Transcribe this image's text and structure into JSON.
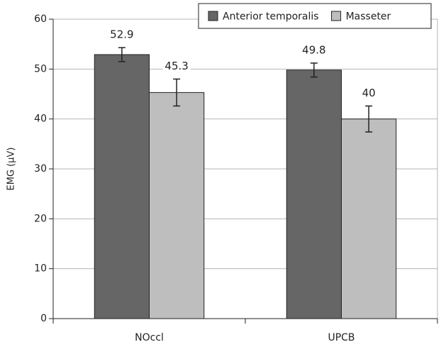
{
  "chart_data": {
    "type": "bar",
    "y_label": "EMG (µV)",
    "categories": [
      "NOccl",
      "UPCB"
    ],
    "series": [
      {
        "name": "Anterior temporalis",
        "color": "#666666",
        "values": [
          52.9,
          49.8
        ],
        "errors": [
          1.4,
          1.4
        ]
      },
      {
        "name": "Masseter",
        "color": "#bebebe",
        "values": [
          45.3,
          40
        ],
        "errors": [
          2.7,
          2.6
        ]
      }
    ],
    "ylim": [
      0,
      60
    ],
    "yticks": [
      0,
      10,
      20,
      30,
      40,
      50,
      60
    ],
    "grid": true,
    "legend": "upper right"
  }
}
